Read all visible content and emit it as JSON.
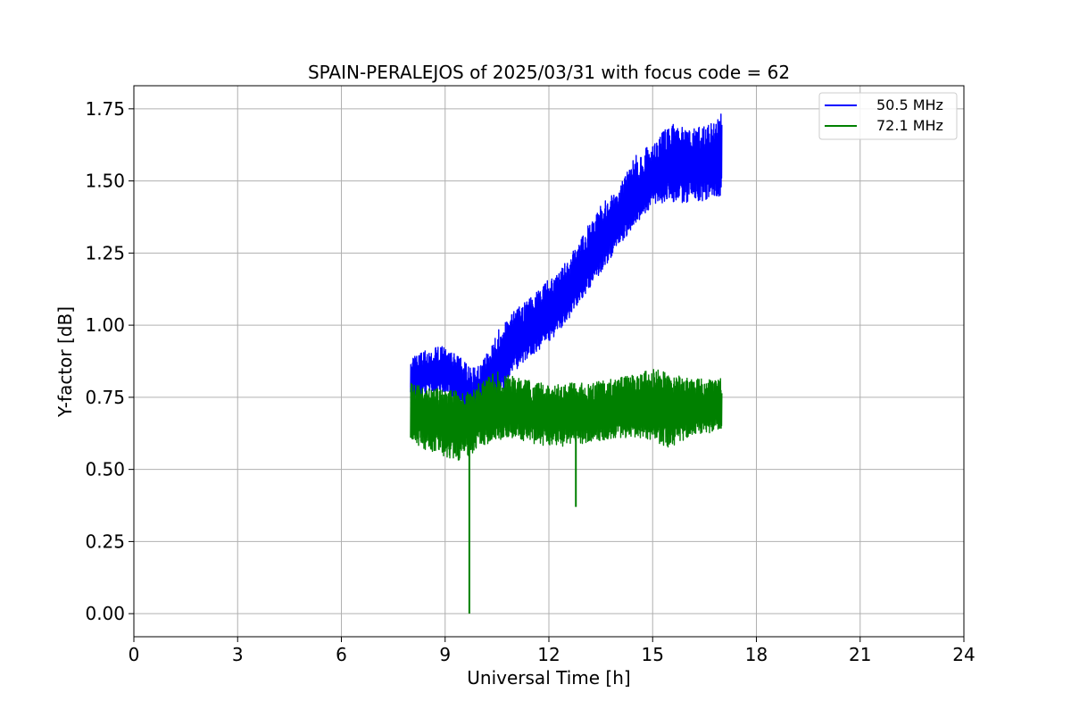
{
  "chart_data": {
    "type": "line",
    "title": "SPAIN-PERALEJOS of 2025/03/31 with focus code = 62",
    "xlabel": "Universal Time [h]",
    "ylabel": "Y-factor [dB]",
    "xlim": [
      0,
      24
    ],
    "ylim": [
      -0.08,
      1.83
    ],
    "xticks": [
      0,
      3,
      6,
      9,
      12,
      15,
      18,
      21,
      24
    ],
    "yticks": [
      0.0,
      0.25,
      0.5,
      0.75,
      1.0,
      1.25,
      1.5,
      1.75
    ],
    "xtick_labels": [
      "0",
      "3",
      "6",
      "9",
      "12",
      "15",
      "18",
      "21",
      "24"
    ],
    "ytick_labels": [
      "0.00",
      "0.25",
      "0.50",
      "0.75",
      "1.00",
      "1.25",
      "1.50",
      "1.75"
    ],
    "grid": true,
    "legend_position": "top-right",
    "series": [
      {
        "name": "50.5 MHz",
        "color": "#0000ff",
        "x": [
          8.0,
          8.5,
          9.0,
          9.5,
          9.75,
          10.0,
          10.5,
          11.0,
          11.5,
          12.0,
          12.5,
          13.0,
          13.5,
          14.0,
          14.5,
          15.0,
          15.5,
          16.0,
          16.5,
          17.0
        ],
        "y_mid": [
          0.8,
          0.83,
          0.84,
          0.79,
          0.72,
          0.76,
          0.82,
          0.93,
          0.98,
          1.03,
          1.09,
          1.19,
          1.28,
          1.36,
          1.43,
          1.5,
          1.54,
          1.55,
          1.56,
          1.58
        ],
        "y_min": [
          0.74,
          0.76,
          0.77,
          0.72,
          0.58,
          0.7,
          0.74,
          0.84,
          0.89,
          0.94,
          1.0,
          1.1,
          1.18,
          1.27,
          1.35,
          1.41,
          1.43,
          1.42,
          1.43,
          1.45
        ],
        "y_max": [
          0.89,
          0.92,
          0.93,
          0.88,
          0.85,
          0.86,
          0.98,
          1.05,
          1.1,
          1.16,
          1.22,
          1.32,
          1.42,
          1.48,
          1.59,
          1.63,
          1.7,
          1.68,
          1.69,
          1.74
        ]
      },
      {
        "name": "72.1 MHz",
        "color": "#008000",
        "x": [
          8.0,
          8.5,
          9.0,
          9.5,
          9.75,
          10.0,
          10.5,
          11.0,
          11.5,
          12.0,
          12.5,
          13.0,
          13.5,
          14.0,
          14.5,
          15.0,
          15.5,
          16.0,
          16.5,
          17.0
        ],
        "y_mid": [
          0.7,
          0.69,
          0.68,
          0.66,
          0.67,
          0.69,
          0.7,
          0.7,
          0.69,
          0.68,
          0.69,
          0.69,
          0.7,
          0.71,
          0.71,
          0.72,
          0.71,
          0.71,
          0.71,
          0.72
        ],
        "y_min": [
          0.6,
          0.56,
          0.54,
          0.53,
          0.55,
          0.58,
          0.6,
          0.61,
          0.59,
          0.58,
          0.58,
          0.59,
          0.6,
          0.61,
          0.61,
          0.6,
          0.57,
          0.61,
          0.62,
          0.64
        ],
        "y_max": [
          0.8,
          0.78,
          0.78,
          0.77,
          0.77,
          0.81,
          0.84,
          0.82,
          0.81,
          0.79,
          0.8,
          0.8,
          0.81,
          0.82,
          0.83,
          0.85,
          0.84,
          0.82,
          0.82,
          0.82
        ],
        "spikes": [
          {
            "x": 9.7,
            "y": 0.0
          },
          {
            "x": 12.78,
            "y": 0.37
          }
        ]
      }
    ]
  }
}
